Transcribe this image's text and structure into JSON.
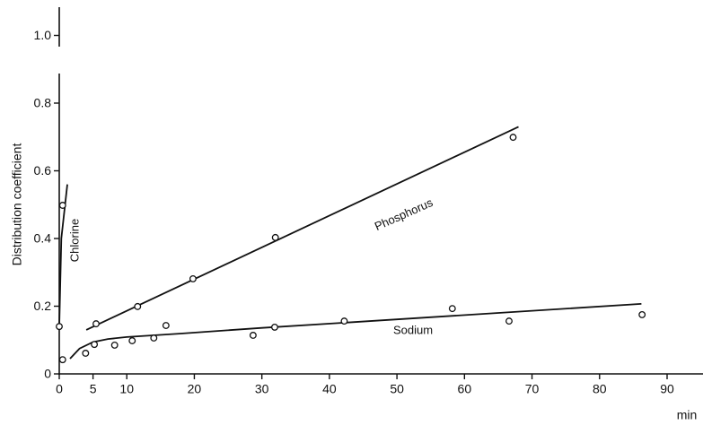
{
  "chart_data": {
    "type": "scatter",
    "y_label": "Distribution coefficient",
    "x_label": "min",
    "xlim": [
      0,
      90
    ],
    "xticks": [
      0,
      5,
      10,
      20,
      30,
      40,
      50,
      60,
      70,
      80,
      90
    ],
    "ylim": [
      0,
      1
    ],
    "yticks": [
      0,
      0.2,
      0.4,
      0.6,
      0.8,
      {
        "value": 1,
        "label": "1.0"
      }
    ],
    "grid": false,
    "color": "#111111",
    "series": [
      {
        "name": "Chlorine",
        "x": [
          0,
          0.5
        ],
        "values": [
          0.14,
          0.498
        ],
        "fit_x": [
          0,
          0.3,
          1.2
        ],
        "fit_values": [
          0.14,
          0.4,
          0.56
        ]
      },
      {
        "name": "Phosphorus",
        "x": [
          5.45,
          11.6,
          19.8,
          32.0,
          67.2
        ],
        "values": [
          0.148,
          0.199,
          0.281,
          0.403,
          0.699
        ],
        "fit_x": [
          4,
          68
        ],
        "fit_values": [
          0.13,
          0.73
        ]
      },
      {
        "name": "Sodium",
        "x": [
          0.5,
          3.9,
          5.2,
          8.2,
          10.8,
          14.0,
          15.8,
          28.7,
          31.9,
          42.2,
          58.2,
          66.6,
          86.3
        ],
        "values": [
          0.042,
          0.061,
          0.087,
          0.085,
          0.098,
          0.106,
          0.143,
          0.114,
          0.138,
          0.156,
          0.193,
          0.156,
          0.175
        ],
        "fit_x": [
          1.6,
          3,
          5,
          7.2,
          10,
          17.8,
          30,
          50,
          86.2
        ],
        "fit_values": [
          0.045,
          0.075,
          0.094,
          0.103,
          0.109,
          0.119,
          0.136,
          0.161,
          0.207
        ]
      }
    ]
  }
}
